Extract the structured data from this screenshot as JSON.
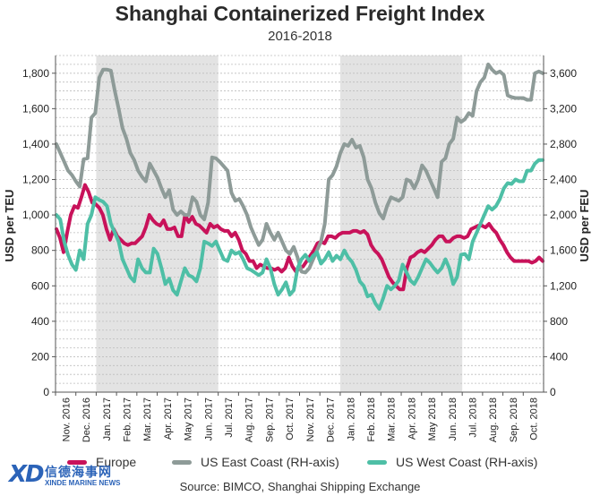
{
  "chart_data": {
    "type": "line",
    "title": "Shanghai Containerized Freight Index",
    "subtitle": "2016-2018",
    "ylabel_left": "USD per TEU",
    "ylabel_right": "USD per FEU",
    "ylim_left": [
      0,
      1900
    ],
    "ylim_right": [
      0,
      3800
    ],
    "yticks_left": [
      "0",
      "200",
      "400",
      "600",
      "800",
      "1,000",
      "1,200",
      "1,400",
      "1,600",
      "1,800"
    ],
    "yticks_right": [
      "0",
      "400",
      "800",
      "1,200",
      "1,600",
      "2,000",
      "2,400",
      "2,800",
      "3,200",
      "3,600"
    ],
    "x_labels": [
      "Nov. 2016",
      "Dec. 2016",
      "Jan. 2017",
      "Feb. 2017",
      "Mar. 2017",
      "Apr. 2017",
      "May 2017",
      "Jun. 2017",
      "Jul. 2017",
      "Aug. 2017",
      "Sep. 2017",
      "Oct. 2017",
      "Nov. 2017",
      "Dec. 2017",
      "Jan. 2018",
      "Feb. 2018",
      "Mar. 2018",
      "Apr. 2018",
      "May 2018",
      "Jun. 2018",
      "Jul. 2018",
      "Aug. 2018",
      "Sep. 2018",
      "Oct. 2018"
    ],
    "shaded_periods": [
      [
        2,
        8
      ],
      [
        14,
        20
      ]
    ],
    "legend_position": "bottom",
    "series": [
      {
        "name": "Europe",
        "axis": "left",
        "color": "#c8125a",
        "values": [
          920,
          870,
          790,
          900,
          1000,
          1050,
          1040,
          1100,
          1170,
          1130,
          1070,
          1060,
          1040,
          1000,
          920,
          860,
          920,
          880,
          860,
          840,
          830,
          840,
          840,
          860,
          880,
          930,
          1000,
          970,
          950,
          940,
          970,
          920,
          920,
          930,
          880,
          880,
          1000,
          960,
          990,
          950,
          940,
          920,
          900,
          950,
          930,
          940,
          920,
          910,
          910,
          880,
          900,
          860,
          800,
          780,
          740,
          740,
          700,
          720,
          710,
          700,
          700,
          690,
          700,
          680,
          700,
          760,
          710,
          680,
          700,
          710,
          740,
          770,
          800,
          840,
          850,
          840,
          880,
          880,
          870,
          890,
          900,
          900,
          900,
          910,
          910,
          900,
          910,
          890,
          830,
          800,
          780,
          750,
          700,
          650,
          620,
          600,
          580,
          580,
          700,
          760,
          770,
          790,
          800,
          790,
          810,
          830,
          860,
          880,
          880,
          850,
          850,
          870,
          880,
          880,
          870,
          880,
          920,
          930,
          940,
          940,
          930,
          950,
          920,
          900,
          860,
          830,
          790,
          760,
          740,
          740,
          740,
          740,
          740,
          730,
          740,
          760,
          740
        ]
      },
      {
        "name": "US East Coast (RH-axis)",
        "axis": "right",
        "color": "#8e9b98",
        "values": [
          2800,
          2700,
          2600,
          2500,
          2450,
          2380,
          2320,
          2630,
          2640,
          3100,
          3150,
          3550,
          3640,
          3640,
          3630,
          3400,
          3200,
          2980,
          2860,
          2700,
          2620,
          2500,
          2430,
          2380,
          2580,
          2500,
          2420,
          2300,
          2200,
          2280,
          2060,
          2000,
          2040,
          2000,
          2000,
          2200,
          2150,
          2000,
          1950,
          2140,
          2650,
          2640,
          2600,
          2550,
          2500,
          2250,
          2160,
          2180,
          2100,
          2000,
          1860,
          1760,
          1660,
          1720,
          1900,
          1800,
          1720,
          1800,
          1700,
          1600,
          1560,
          1640,
          1520,
          1360,
          1350,
          1400,
          1500,
          1600,
          1700,
          1900,
          2400,
          2450,
          2550,
          2700,
          2800,
          2780,
          2850,
          2760,
          2780,
          2650,
          2400,
          2300,
          2140,
          2020,
          1960,
          2100,
          2200,
          2180,
          2160,
          2200,
          2400,
          2380,
          2300,
          2400,
          2560,
          2500,
          2400,
          2300,
          2200,
          2600,
          2640,
          2800,
          2860,
          3100,
          3050,
          3080,
          3150,
          3120,
          3400,
          3500,
          3550,
          3700,
          3640,
          3600,
          3620,
          3580,
          3350,
          3330,
          3320,
          3320,
          3320,
          3300,
          3300,
          3600,
          3620,
          3600
        ]
      },
      {
        "name": "US West Coast (RH-axis)",
        "axis": "right",
        "color": "#4ebfa6",
        "values": [
          2000,
          1950,
          1700,
          1550,
          1440,
          1380,
          1600,
          1500,
          1900,
          2000,
          2200,
          2170,
          2150,
          2100,
          1900,
          1800,
          1700,
          1500,
          1400,
          1300,
          1250,
          1500,
          1400,
          1350,
          1350,
          1620,
          1560,
          1400,
          1220,
          1280,
          1150,
          1100,
          1250,
          1400,
          1320,
          1300,
          1250,
          1400,
          1700,
          1680,
          1650,
          1700,
          1600,
          1500,
          1480,
          1600,
          1560,
          1580,
          1500,
          1400,
          1380,
          1350,
          1320,
          1350,
          1500,
          1400,
          1220,
          1100,
          1160,
          1240,
          1100,
          1150,
          1400,
          1500,
          1550,
          1480,
          1540,
          1580,
          1450,
          1500,
          1580,
          1480,
          1540,
          1500,
          1600,
          1520,
          1470,
          1380,
          1250,
          1200,
          1080,
          1100,
          1000,
          940,
          1060,
          1200,
          1160,
          1200,
          1260,
          1440,
          1350,
          1260,
          1220,
          1300,
          1400,
          1500,
          1460,
          1400,
          1350,
          1400,
          1500,
          1400,
          1220,
          1300,
          1550,
          1560,
          1500,
          1700,
          1800,
          1900,
          2000,
          2100,
          2060,
          2100,
          2180,
          2300,
          2360,
          2350,
          2400,
          2380,
          2380,
          2500,
          2500,
          2580,
          2620,
          2620
        ]
      }
    ]
  },
  "source": "Source: BIMCO, Shanghai Shipping Exchange",
  "logo": {
    "mark": "XD",
    "chinese": "信德海事网",
    "english": "XINDE MARINE NEWS"
  }
}
